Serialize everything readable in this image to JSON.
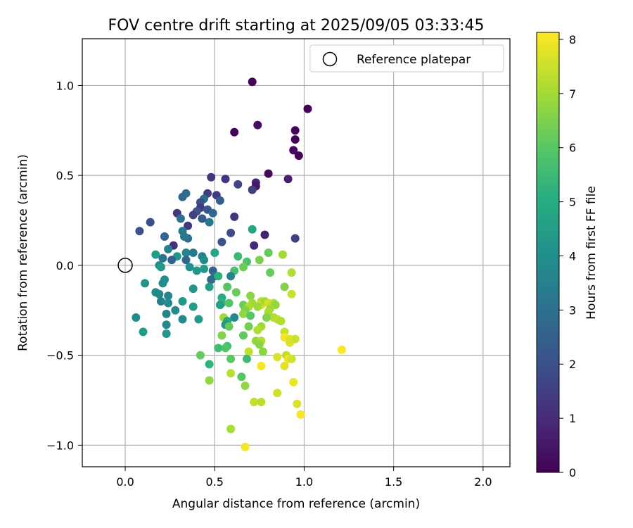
{
  "chart_data": {
    "type": "scatter",
    "title": "FOV centre drift starting at 2025/09/05 03:33:45",
    "xlabel": "Angular distance from reference (arcmin)",
    "ylabel": "Rotation from reference (arcmin)",
    "xlim": [
      -0.24,
      2.15
    ],
    "ylim": [
      -1.12,
      1.26
    ],
    "xticks": [
      0.0,
      0.5,
      1.0,
      1.5,
      2.0
    ],
    "xtick_labels": [
      "0.0",
      "0.5",
      "1.0",
      "1.5",
      "2.0"
    ],
    "yticks": [
      1.0,
      0.5,
      0.0,
      -0.5,
      -1.0
    ],
    "ytick_labels": [
      "1.0",
      "0.5",
      "0.0",
      "−0.5",
      "−1.0"
    ],
    "grid": true,
    "legend": {
      "placement": "top-right",
      "entries": [
        "Reference platepar"
      ]
    },
    "reference_point": {
      "x": 0.0,
      "y": 0.0,
      "marker": "hollow-circle"
    },
    "colorbar": {
      "label": "Hours from first FF file",
      "colormap": "viridis",
      "range": [
        0,
        8.13
      ],
      "ticks": [
        0,
        1,
        2,
        3,
        4,
        5,
        6,
        7,
        8
      ],
      "tick_labels": [
        "0",
        "1",
        "2",
        "3",
        "4",
        "5",
        "6",
        "7",
        "8"
      ]
    },
    "points": [
      {
        "x": 0.71,
        "y": 1.02,
        "t": 0.1
      },
      {
        "x": 1.02,
        "y": 0.87,
        "t": 0.1
      },
      {
        "x": 0.74,
        "y": 0.78,
        "t": 0.3
      },
      {
        "x": 0.95,
        "y": 0.75,
        "t": 0.1
      },
      {
        "x": 0.61,
        "y": 0.74,
        "t": 0.1
      },
      {
        "x": 0.95,
        "y": 0.7,
        "t": 0.1
      },
      {
        "x": 0.94,
        "y": 0.64,
        "t": 0.2
      },
      {
        "x": 0.97,
        "y": 0.61,
        "t": 0.1
      },
      {
        "x": 0.8,
        "y": 0.51,
        "t": 0.2
      },
      {
        "x": 0.91,
        "y": 0.48,
        "t": 0.7
      },
      {
        "x": 0.48,
        "y": 0.49,
        "t": 1.3
      },
      {
        "x": 0.56,
        "y": 0.48,
        "t": 1.2
      },
      {
        "x": 0.73,
        "y": 0.46,
        "t": 0.8
      },
      {
        "x": 0.73,
        "y": 0.44,
        "t": 0.5
      },
      {
        "x": 0.63,
        "y": 0.45,
        "t": 1.7
      },
      {
        "x": 0.71,
        "y": 0.42,
        "t": 1.5
      },
      {
        "x": 0.34,
        "y": 0.4,
        "t": 3.0
      },
      {
        "x": 0.46,
        "y": 0.4,
        "t": 1.5
      },
      {
        "x": 0.51,
        "y": 0.39,
        "t": 1.4
      },
      {
        "x": 0.32,
        "y": 0.38,
        "t": 2.8
      },
      {
        "x": 0.44,
        "y": 0.37,
        "t": 2.9
      },
      {
        "x": 0.42,
        "y": 0.35,
        "t": 2.0
      },
      {
        "x": 0.53,
        "y": 0.36,
        "t": 2.4
      },
      {
        "x": 0.42,
        "y": 0.32,
        "t": 1.4
      },
      {
        "x": 0.4,
        "y": 0.3,
        "t": 2.2
      },
      {
        "x": 0.46,
        "y": 0.31,
        "t": 2.2
      },
      {
        "x": 0.29,
        "y": 0.29,
        "t": 1.3
      },
      {
        "x": 0.49,
        "y": 0.29,
        "t": 2.8
      },
      {
        "x": 0.38,
        "y": 0.28,
        "t": 1.6
      },
      {
        "x": 0.31,
        "y": 0.26,
        "t": 3.0
      },
      {
        "x": 0.43,
        "y": 0.26,
        "t": 2.3
      },
      {
        "x": 0.47,
        "y": 0.24,
        "t": 3.2
      },
      {
        "x": 0.61,
        "y": 0.27,
        "t": 1.2
      },
      {
        "x": 0.14,
        "y": 0.24,
        "t": 2.0
      },
      {
        "x": 0.35,
        "y": 0.22,
        "t": 1.3
      },
      {
        "x": 0.08,
        "y": 0.19,
        "t": 2.1
      },
      {
        "x": 0.32,
        "y": 0.19,
        "t": 3.3
      },
      {
        "x": 0.59,
        "y": 0.18,
        "t": 1.8
      },
      {
        "x": 0.22,
        "y": 0.16,
        "t": 2.6
      },
      {
        "x": 0.35,
        "y": 0.15,
        "t": 3.0
      },
      {
        "x": 0.33,
        "y": 0.16,
        "t": 3.2
      },
      {
        "x": 0.78,
        "y": 0.17,
        "t": 0.8
      },
      {
        "x": 0.71,
        "y": 0.2,
        "t": 4.8
      },
      {
        "x": 0.54,
        "y": 0.13,
        "t": 2.1
      },
      {
        "x": 0.95,
        "y": 0.15,
        "t": 1.6
      },
      {
        "x": 0.72,
        "y": 0.11,
        "t": 1.0
      },
      {
        "x": 0.27,
        "y": 0.11,
        "t": 1.1
      },
      {
        "x": 0.24,
        "y": 0.09,
        "t": 3.6
      },
      {
        "x": 0.34,
        "y": 0.07,
        "t": 3.6
      },
      {
        "x": 0.38,
        "y": 0.07,
        "t": 3.3
      },
      {
        "x": 0.17,
        "y": 0.06,
        "t": 4.5
      },
      {
        "x": 0.5,
        "y": 0.07,
        "t": 4.8
      },
      {
        "x": 0.29,
        "y": 0.05,
        "t": 4.4
      },
      {
        "x": 0.43,
        "y": 0.05,
        "t": 3.6
      },
      {
        "x": 0.63,
        "y": 0.05,
        "t": 5.5
      },
      {
        "x": 0.8,
        "y": 0.07,
        "t": 6.2
      },
      {
        "x": 0.88,
        "y": 0.06,
        "t": 7.0
      },
      {
        "x": 0.21,
        "y": 0.04,
        "t": 3.1
      },
      {
        "x": 0.26,
        "y": 0.03,
        "t": 2.6
      },
      {
        "x": 0.34,
        "y": 0.03,
        "t": 2.7
      },
      {
        "x": 0.44,
        "y": 0.03,
        "t": 3.9
      },
      {
        "x": 0.68,
        "y": 0.02,
        "t": 5.8
      },
      {
        "x": 0.75,
        "y": 0.03,
        "t": 6.5
      },
      {
        "x": 0.19,
        "y": 0.0,
        "t": 4.0
      },
      {
        "x": 0.2,
        "y": -0.01,
        "t": 4.4
      },
      {
        "x": 0.36,
        "y": -0.01,
        "t": 4.0
      },
      {
        "x": 0.4,
        "y": -0.03,
        "t": 4.3
      },
      {
        "x": 0.44,
        "y": -0.02,
        "t": 4.5
      },
      {
        "x": 0.49,
        "y": -0.03,
        "t": 2.5
      },
      {
        "x": 0.61,
        "y": -0.03,
        "t": 5.8
      },
      {
        "x": 0.66,
        "y": -0.01,
        "t": 6.3
      },
      {
        "x": 0.81,
        "y": -0.04,
        "t": 6.2
      },
      {
        "x": 0.93,
        "y": -0.04,
        "t": 7.2
      },
      {
        "x": 0.5,
        "y": -0.06,
        "t": 3.0
      },
      {
        "x": 0.48,
        "y": -0.08,
        "t": 2.8
      },
      {
        "x": 0.52,
        "y": -0.06,
        "t": 5.2
      },
      {
        "x": 0.59,
        "y": -0.06,
        "t": 3.6
      },
      {
        "x": 0.11,
        "y": -0.1,
        "t": 4.2
      },
      {
        "x": 0.22,
        "y": -0.08,
        "t": 4.0
      },
      {
        "x": 0.21,
        "y": -0.1,
        "t": 4.0
      },
      {
        "x": 0.47,
        "y": -0.12,
        "t": 4.5
      },
      {
        "x": 0.57,
        "y": -0.12,
        "t": 6.0
      },
      {
        "x": 0.38,
        "y": -0.13,
        "t": 4.2
      },
      {
        "x": 0.17,
        "y": -0.15,
        "t": 3.9
      },
      {
        "x": 0.19,
        "y": -0.16,
        "t": 3.8
      },
      {
        "x": 0.62,
        "y": -0.15,
        "t": 6.3
      },
      {
        "x": 0.7,
        "y": -0.17,
        "t": 6.7
      },
      {
        "x": 0.89,
        "y": -0.12,
        "t": 6.6
      },
      {
        "x": 0.93,
        "y": -0.16,
        "t": 7.5
      },
      {
        "x": 0.24,
        "y": -0.17,
        "t": 3.7
      },
      {
        "x": 0.54,
        "y": -0.18,
        "t": 5.0
      },
      {
        "x": 0.54,
        "y": -0.21,
        "t": 5.3
      },
      {
        "x": 0.2,
        "y": -0.2,
        "t": 3.5
      },
      {
        "x": 0.32,
        "y": -0.2,
        "t": 4.3
      },
      {
        "x": 0.24,
        "y": -0.21,
        "t": 3.9
      },
      {
        "x": 0.58,
        "y": -0.21,
        "t": 6.0
      },
      {
        "x": 0.71,
        "y": -0.21,
        "t": 7.0
      },
      {
        "x": 0.66,
        "y": -0.22,
        "t": 6.3
      },
      {
        "x": 0.76,
        "y": -0.2,
        "t": 7.3
      },
      {
        "x": 0.76,
        "y": -0.22,
        "t": 7.6
      },
      {
        "x": 0.78,
        "y": -0.2,
        "t": 7.0
      },
      {
        "x": 0.8,
        "y": -0.21,
        "t": 7.6
      },
      {
        "x": 0.83,
        "y": -0.21,
        "t": 7.3
      },
      {
        "x": 0.84,
        "y": -0.22,
        "t": 6.8
      },
      {
        "x": 0.74,
        "y": -0.23,
        "t": 6.9
      },
      {
        "x": 0.69,
        "y": -0.23,
        "t": 7.1
      },
      {
        "x": 0.81,
        "y": -0.24,
        "t": 7.0
      },
      {
        "x": 0.53,
        "y": -0.22,
        "t": 4.6
      },
      {
        "x": 0.38,
        "y": -0.23,
        "t": 4.5
      },
      {
        "x": 0.28,
        "y": -0.25,
        "t": 3.8
      },
      {
        "x": 0.67,
        "y": -0.25,
        "t": 6.5
      },
      {
        "x": 0.23,
        "y": -0.27,
        "t": 3.7
      },
      {
        "x": 0.61,
        "y": -0.29,
        "t": 3.8
      },
      {
        "x": 0.8,
        "y": -0.26,
        "t": 7.1
      },
      {
        "x": 0.66,
        "y": -0.27,
        "t": 6.8
      },
      {
        "x": 0.7,
        "y": -0.28,
        "t": 6.0
      },
      {
        "x": 0.55,
        "y": -0.29,
        "t": 7.0
      },
      {
        "x": 0.83,
        "y": -0.29,
        "t": 7.2
      },
      {
        "x": 0.85,
        "y": -0.3,
        "t": 7.3
      },
      {
        "x": 0.06,
        "y": -0.29,
        "t": 3.9
      },
      {
        "x": 0.32,
        "y": -0.3,
        "t": 3.8
      },
      {
        "x": 0.41,
        "y": -0.3,
        "t": 4.4
      },
      {
        "x": 0.57,
        "y": -0.31,
        "t": 4.8
      },
      {
        "x": 0.79,
        "y": -0.29,
        "t": 6.6
      },
      {
        "x": 0.87,
        "y": -0.31,
        "t": 7.2
      },
      {
        "x": 0.56,
        "y": -0.33,
        "t": 4.3
      },
      {
        "x": 0.23,
        "y": -0.33,
        "t": 3.8
      },
      {
        "x": 0.58,
        "y": -0.34,
        "t": 6.2
      },
      {
        "x": 0.69,
        "y": -0.34,
        "t": 6.4
      },
      {
        "x": 0.76,
        "y": -0.34,
        "t": 7.0
      },
      {
        "x": 0.74,
        "y": -0.36,
        "t": 7.2
      },
      {
        "x": 0.1,
        "y": -0.37,
        "t": 4.5
      },
      {
        "x": 0.89,
        "y": -0.37,
        "t": 7.5
      },
      {
        "x": 0.23,
        "y": -0.38,
        "t": 4.3
      },
      {
        "x": 0.66,
        "y": -0.39,
        "t": 6.2
      },
      {
        "x": 0.54,
        "y": -0.39,
        "t": 6.6
      },
      {
        "x": 0.89,
        "y": -0.4,
        "t": 8.0
      },
      {
        "x": 0.92,
        "y": -0.41,
        "t": 7.8
      },
      {
        "x": 0.95,
        "y": -0.41,
        "t": 7.5
      },
      {
        "x": 0.73,
        "y": -0.42,
        "t": 6.8
      },
      {
        "x": 0.76,
        "y": -0.42,
        "t": 7.2
      },
      {
        "x": 0.75,
        "y": -0.44,
        "t": 6.7
      },
      {
        "x": 0.92,
        "y": -0.43,
        "t": 7.7
      },
      {
        "x": 0.57,
        "y": -0.45,
        "t": 5.7
      },
      {
        "x": 0.56,
        "y": -0.46,
        "t": 5.9
      },
      {
        "x": 0.52,
        "y": -0.46,
        "t": 5.6
      },
      {
        "x": 1.21,
        "y": -0.47,
        "t": 8.1
      },
      {
        "x": 0.69,
        "y": -0.48,
        "t": 7.4
      },
      {
        "x": 0.77,
        "y": -0.48,
        "t": 6.7
      },
      {
        "x": 0.42,
        "y": -0.5,
        "t": 6.2
      },
      {
        "x": 0.85,
        "y": -0.51,
        "t": 7.7
      },
      {
        "x": 0.9,
        "y": -0.5,
        "t": 7.4
      },
      {
        "x": 0.68,
        "y": -0.52,
        "t": 5.6
      },
      {
        "x": 0.59,
        "y": -0.52,
        "t": 6.1
      },
      {
        "x": 0.91,
        "y": -0.52,
        "t": 7.9
      },
      {
        "x": 0.93,
        "y": -0.52,
        "t": 7.6
      },
      {
        "x": 0.47,
        "y": -0.55,
        "t": 5.3
      },
      {
        "x": 0.76,
        "y": -0.56,
        "t": 8.0
      },
      {
        "x": 0.89,
        "y": -0.56,
        "t": 7.8
      },
      {
        "x": 0.59,
        "y": -0.6,
        "t": 7.3
      },
      {
        "x": 0.65,
        "y": -0.62,
        "t": 6.0
      },
      {
        "x": 0.47,
        "y": -0.64,
        "t": 6.8
      },
      {
        "x": 0.94,
        "y": -0.65,
        "t": 7.9
      },
      {
        "x": 0.67,
        "y": -0.67,
        "t": 6.8
      },
      {
        "x": 0.85,
        "y": -0.71,
        "t": 7.6
      },
      {
        "x": 0.72,
        "y": -0.76,
        "t": 7.4
      },
      {
        "x": 0.76,
        "y": -0.76,
        "t": 7.3
      },
      {
        "x": 0.96,
        "y": -0.77,
        "t": 7.7
      },
      {
        "x": 0.98,
        "y": -0.83,
        "t": 8.0
      },
      {
        "x": 0.59,
        "y": -0.91,
        "t": 7.1
      },
      {
        "x": 0.67,
        "y": -1.01,
        "t": 8.0
      }
    ]
  }
}
